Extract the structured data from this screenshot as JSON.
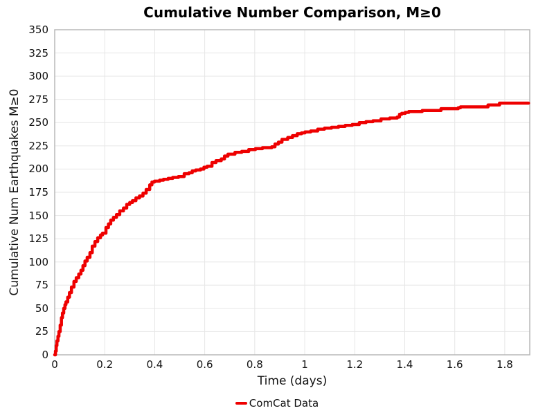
{
  "chart_data": {
    "type": "line",
    "title": "Cumulative Number Comparison, M≥0",
    "xlabel": "Time (days)",
    "ylabel": "Cumulative Num Earthquakes M≥0",
    "xlim": [
      0,
      1.9
    ],
    "ylim": [
      0,
      350
    ],
    "grid": true,
    "line_shape": "step-after",
    "xticks": {
      "values": [
        0,
        0.2,
        0.4,
        0.6,
        0.8,
        1.0,
        1.2,
        1.4,
        1.6,
        1.8
      ],
      "labels": [
        "0",
        "0.2",
        "0.4",
        "0.6",
        "0.8",
        "1",
        "1.2",
        "1.4",
        "1.6",
        "1.8"
      ]
    },
    "yticks": {
      "values": [
        0,
        25,
        50,
        75,
        100,
        125,
        150,
        175,
        200,
        225,
        250,
        275,
        300,
        325,
        350
      ],
      "labels": [
        "0",
        "25",
        "50",
        "75",
        "100",
        "125",
        "150",
        "175",
        "200",
        "225",
        "250",
        "275",
        "300",
        "325",
        "350"
      ]
    },
    "legend": {
      "position": "bottom-center",
      "entries": [
        {
          "label": "ComCat Data",
          "color": "#ee0000"
        }
      ]
    },
    "series": [
      {
        "name": "ComCat Data",
        "color": "#ee0000",
        "line_width": 4.5,
        "x": [
          0,
          0.003,
          0.006,
          0.009,
          0.013,
          0.017,
          0.022,
          0.027,
          0.031,
          0.036,
          0.041,
          0.045,
          0.052,
          0.059,
          0.067,
          0.077,
          0.086,
          0.096,
          0.105,
          0.113,
          0.121,
          0.13,
          0.141,
          0.15,
          0.161,
          0.172,
          0.183,
          0.191,
          0.205,
          0.215,
          0.224,
          0.235,
          0.247,
          0.26,
          0.275,
          0.288,
          0.3,
          0.311,
          0.325,
          0.339,
          0.353,
          0.366,
          0.38,
          0.389,
          0.399,
          0.42,
          0.435,
          0.454,
          0.472,
          0.495,
          0.509,
          0.518,
          0.537,
          0.55,
          0.564,
          0.583,
          0.597,
          0.61,
          0.629,
          0.645,
          0.666,
          0.679,
          0.693,
          0.721,
          0.748,
          0.776,
          0.803,
          0.831,
          0.868,
          0.881,
          0.895,
          0.909,
          0.932,
          0.951,
          0.97,
          0.987,
          1.001,
          1.024,
          1.052,
          1.079,
          1.107,
          1.135,
          1.162,
          1.19,
          1.218,
          1.245,
          1.273,
          1.305,
          1.34,
          1.37,
          1.379,
          1.388,
          1.402,
          1.416,
          1.439,
          1.47,
          1.505,
          1.54,
          1.545,
          1.58,
          1.614,
          1.623,
          1.66,
          1.695,
          1.715,
          1.733,
          1.76,
          1.779,
          1.82,
          1.86,
          1.895
        ],
        "y": [
          0,
          4,
          10,
          15,
          20,
          25,
          32,
          40,
          45,
          50,
          54,
          57,
          62,
          67,
          73,
          79,
          83,
          87,
          91,
          96,
          101,
          105,
          110,
          117,
          122,
          126,
          129,
          131,
          137,
          141,
          145,
          148,
          151,
          155,
          158,
          162,
          164,
          166,
          169,
          171,
          174,
          178,
          183,
          186,
          187,
          188,
          189,
          190,
          191,
          192,
          192,
          195,
          196,
          198,
          199,
          200,
          202,
          203,
          207,
          209,
          211,
          214,
          216,
          218,
          219,
          221,
          222,
          223,
          224,
          227,
          229,
          232,
          234,
          236,
          238,
          239,
          240,
          241,
          243,
          244,
          245,
          246,
          247,
          248,
          250,
          251,
          252,
          254,
          255,
          256,
          259,
          260,
          261,
          262,
          262,
          263,
          263,
          263,
          265,
          265,
          266,
          267,
          267,
          267,
          267,
          269,
          269,
          271,
          271,
          271,
          271
        ]
      }
    ]
  },
  "colors": {
    "accent_red": "#ee0000",
    "grid": "#e6e6e6",
    "spine": "#b8b8b8",
    "text": "#111111"
  }
}
